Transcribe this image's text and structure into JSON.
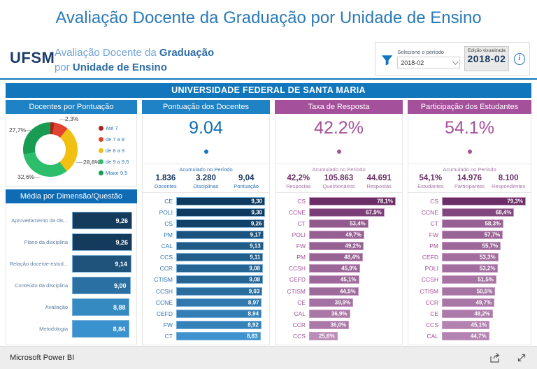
{
  "page_title": "Avaliação Docente da Graduação por Unidade de Ensino",
  "header": {
    "logo": "UFSM",
    "subtitle_line1_normal": "Avaliação Docente da ",
    "subtitle_line1_bold": "Graduação",
    "subtitle_line2_normal": "por ",
    "subtitle_line2_bold": "Unidade de Ensino",
    "filter": {
      "label": "Selecione o período",
      "selected": "2018-02"
    },
    "edition": {
      "label": "Edição visualizada",
      "value": "2018-02"
    },
    "info_icon": "i"
  },
  "banner": "UNIVERSIDADE FEDERAL DE SANTA MARIA",
  "footer": {
    "brand": "Microsoft Power BI"
  },
  "colors": {
    "title_blue": "#2B7AB8",
    "banner_blue": "#1176BC",
    "column_header_blue": "#1E82C4",
    "media_header_blue": "#0F6CB4",
    "purple": "#A5509B",
    "dark_navy": "#17375E",
    "dark_plum": "#6B2F66",
    "footer_bg": "#EDEDED"
  },
  "chart_data": [
    {
      "id": "docentes-pontuacao",
      "type": "pie",
      "title": "Docentes por Pontuação",
      "legend_position": "right",
      "slices": [
        {
          "label": "Até 7",
          "pct": 2.3,
          "display": "2,3%",
          "color": "#A6251F"
        },
        {
          "label": "de 7 a 8",
          "pct": 8.6,
          "display": "",
          "color": "#E2432F"
        },
        {
          "label": "de 8 a 9",
          "pct": 28.8,
          "display": "28,8%",
          "color": "#F2C012"
        },
        {
          "label": "de 9 a 9,5",
          "pct": 32.6,
          "display": "32,6%",
          "color": "#2DBE6B"
        },
        {
          "label": "Maior 9,5",
          "pct": 27.7,
          "display": "27,7%",
          "color": "#189C52"
        }
      ]
    },
    {
      "id": "media-dimensao",
      "type": "bar",
      "title": "Média por Dimensão/Questão",
      "categories": [
        "Aproveitamento da dis...",
        "Plano da disciplina",
        "Relação docente-estud...",
        "Conteúdo da disciplina",
        "Avaliação",
        "Metodologia"
      ],
      "values": [
        9.26,
        9.26,
        9.14,
        9.0,
        8.88,
        8.84
      ],
      "value_labels": [
        "9,26",
        "9,26",
        "9,14",
        "9,00",
        "8,88",
        "8,84"
      ],
      "xlim": [
        0,
        9.26
      ],
      "color_scale": {
        "dark": "#143A5C",
        "light": "#3992CD"
      },
      "bar_border": "#79AFD9"
    },
    {
      "id": "pontuacao-docentes",
      "type": "bar",
      "title": "Pontuação dos Docentes",
      "headline": "9.04",
      "accumulated_label": "Acumulado no Período",
      "kpis": [
        {
          "value": "1.836",
          "label": "Docentes"
        },
        {
          "value": "3.280",
          "label": "Disciplinas"
        },
        {
          "value": "9,04",
          "label": "Pontuação"
        }
      ],
      "categories": [
        "CE",
        "POLI",
        "CS",
        "PM",
        "CAL",
        "CCS",
        "CCR",
        "CTISM",
        "CCSH",
        "CCNE",
        "CEFD",
        "FW",
        "CT"
      ],
      "values": [
        9.3,
        9.3,
        9.26,
        9.17,
        9.13,
        9.11,
        9.08,
        9.08,
        9.03,
        8.97,
        8.94,
        8.92,
        8.83
      ],
      "value_labels": [
        "9,30",
        "9,30",
        "9,26",
        "9,17",
        "9,13",
        "9,11",
        "9,08",
        "9,08",
        "9,03",
        "8,97",
        "8,94",
        "8,92",
        "8,83"
      ],
      "xlim": [
        0,
        9.3
      ],
      "color_scale": {
        "dark": "#0F3A5F",
        "light": "#3E93CE"
      },
      "bar_border": "#79AFD9"
    },
    {
      "id": "taxa-resposta",
      "type": "bar",
      "title": "Taxa de Resposta",
      "headline": "42.2%",
      "accumulated_label": "Acumulado no Período",
      "kpis": [
        {
          "value": "42,2%",
          "label": "Respostas"
        },
        {
          "value": "105.863",
          "label": "Questionários"
        },
        {
          "value": "44.691",
          "label": "Respostas"
        }
      ],
      "categories": [
        "CS",
        "CCNE",
        "CT",
        "POLI",
        "FW",
        "PM",
        "CCSH",
        "CEFD",
        "CTISM",
        "CE",
        "CAL",
        "CCR",
        "CCS"
      ],
      "values": [
        78.1,
        67.9,
        53.4,
        49.7,
        49.2,
        48.4,
        45.9,
        45.1,
        44.5,
        39.9,
        36.9,
        36.0,
        25.6
      ],
      "value_labels": [
        "78,1%",
        "67,9%",
        "53,4%",
        "49,7%",
        "49,2%",
        "48,4%",
        "45,9%",
        "45,1%",
        "44,5%",
        "39,9%",
        "36,9%",
        "36,0%",
        "25,6%"
      ],
      "xlim": [
        0,
        80
      ],
      "color_scale": {
        "dark": "#6B2D66",
        "light": "#BA8CB8"
      },
      "bar_border": "#C79BC4"
    },
    {
      "id": "participacao-estudantes",
      "type": "bar",
      "title": "Participação dos Estudantes",
      "headline": "54.1%",
      "accumulated_label": "Acumulado no Período",
      "kpis": [
        {
          "value": "54,1%",
          "label": "Estudantes"
        },
        {
          "value": "14.976",
          "label": "Participantes"
        },
        {
          "value": "8.100",
          "label": "Respondentes"
        }
      ],
      "categories": [
        "CS",
        "CCNE",
        "CT",
        "FW",
        "PM",
        "CEFD",
        "POLI",
        "CCSH",
        "CTISM",
        "CCR",
        "CE",
        "CCS",
        "CAL"
      ],
      "values": [
        79.3,
        68.4,
        58.3,
        57.7,
        55.7,
        53.3,
        53.2,
        51.5,
        50.5,
        49.7,
        48.2,
        45.1,
        44.7
      ],
      "value_labels": [
        "79,3%",
        "68,4%",
        "58,3%",
        "57,7%",
        "55,7%",
        "53,3%",
        "53,2%",
        "51,5%",
        "50,5%",
        "49,7%",
        "48,2%",
        "45,1%",
        "44,7%"
      ],
      "xlim": [
        0,
        80
      ],
      "color_scale": {
        "dark": "#6B2D66",
        "light": "#B383B1"
      },
      "bar_border": "#C79BC4"
    }
  ]
}
